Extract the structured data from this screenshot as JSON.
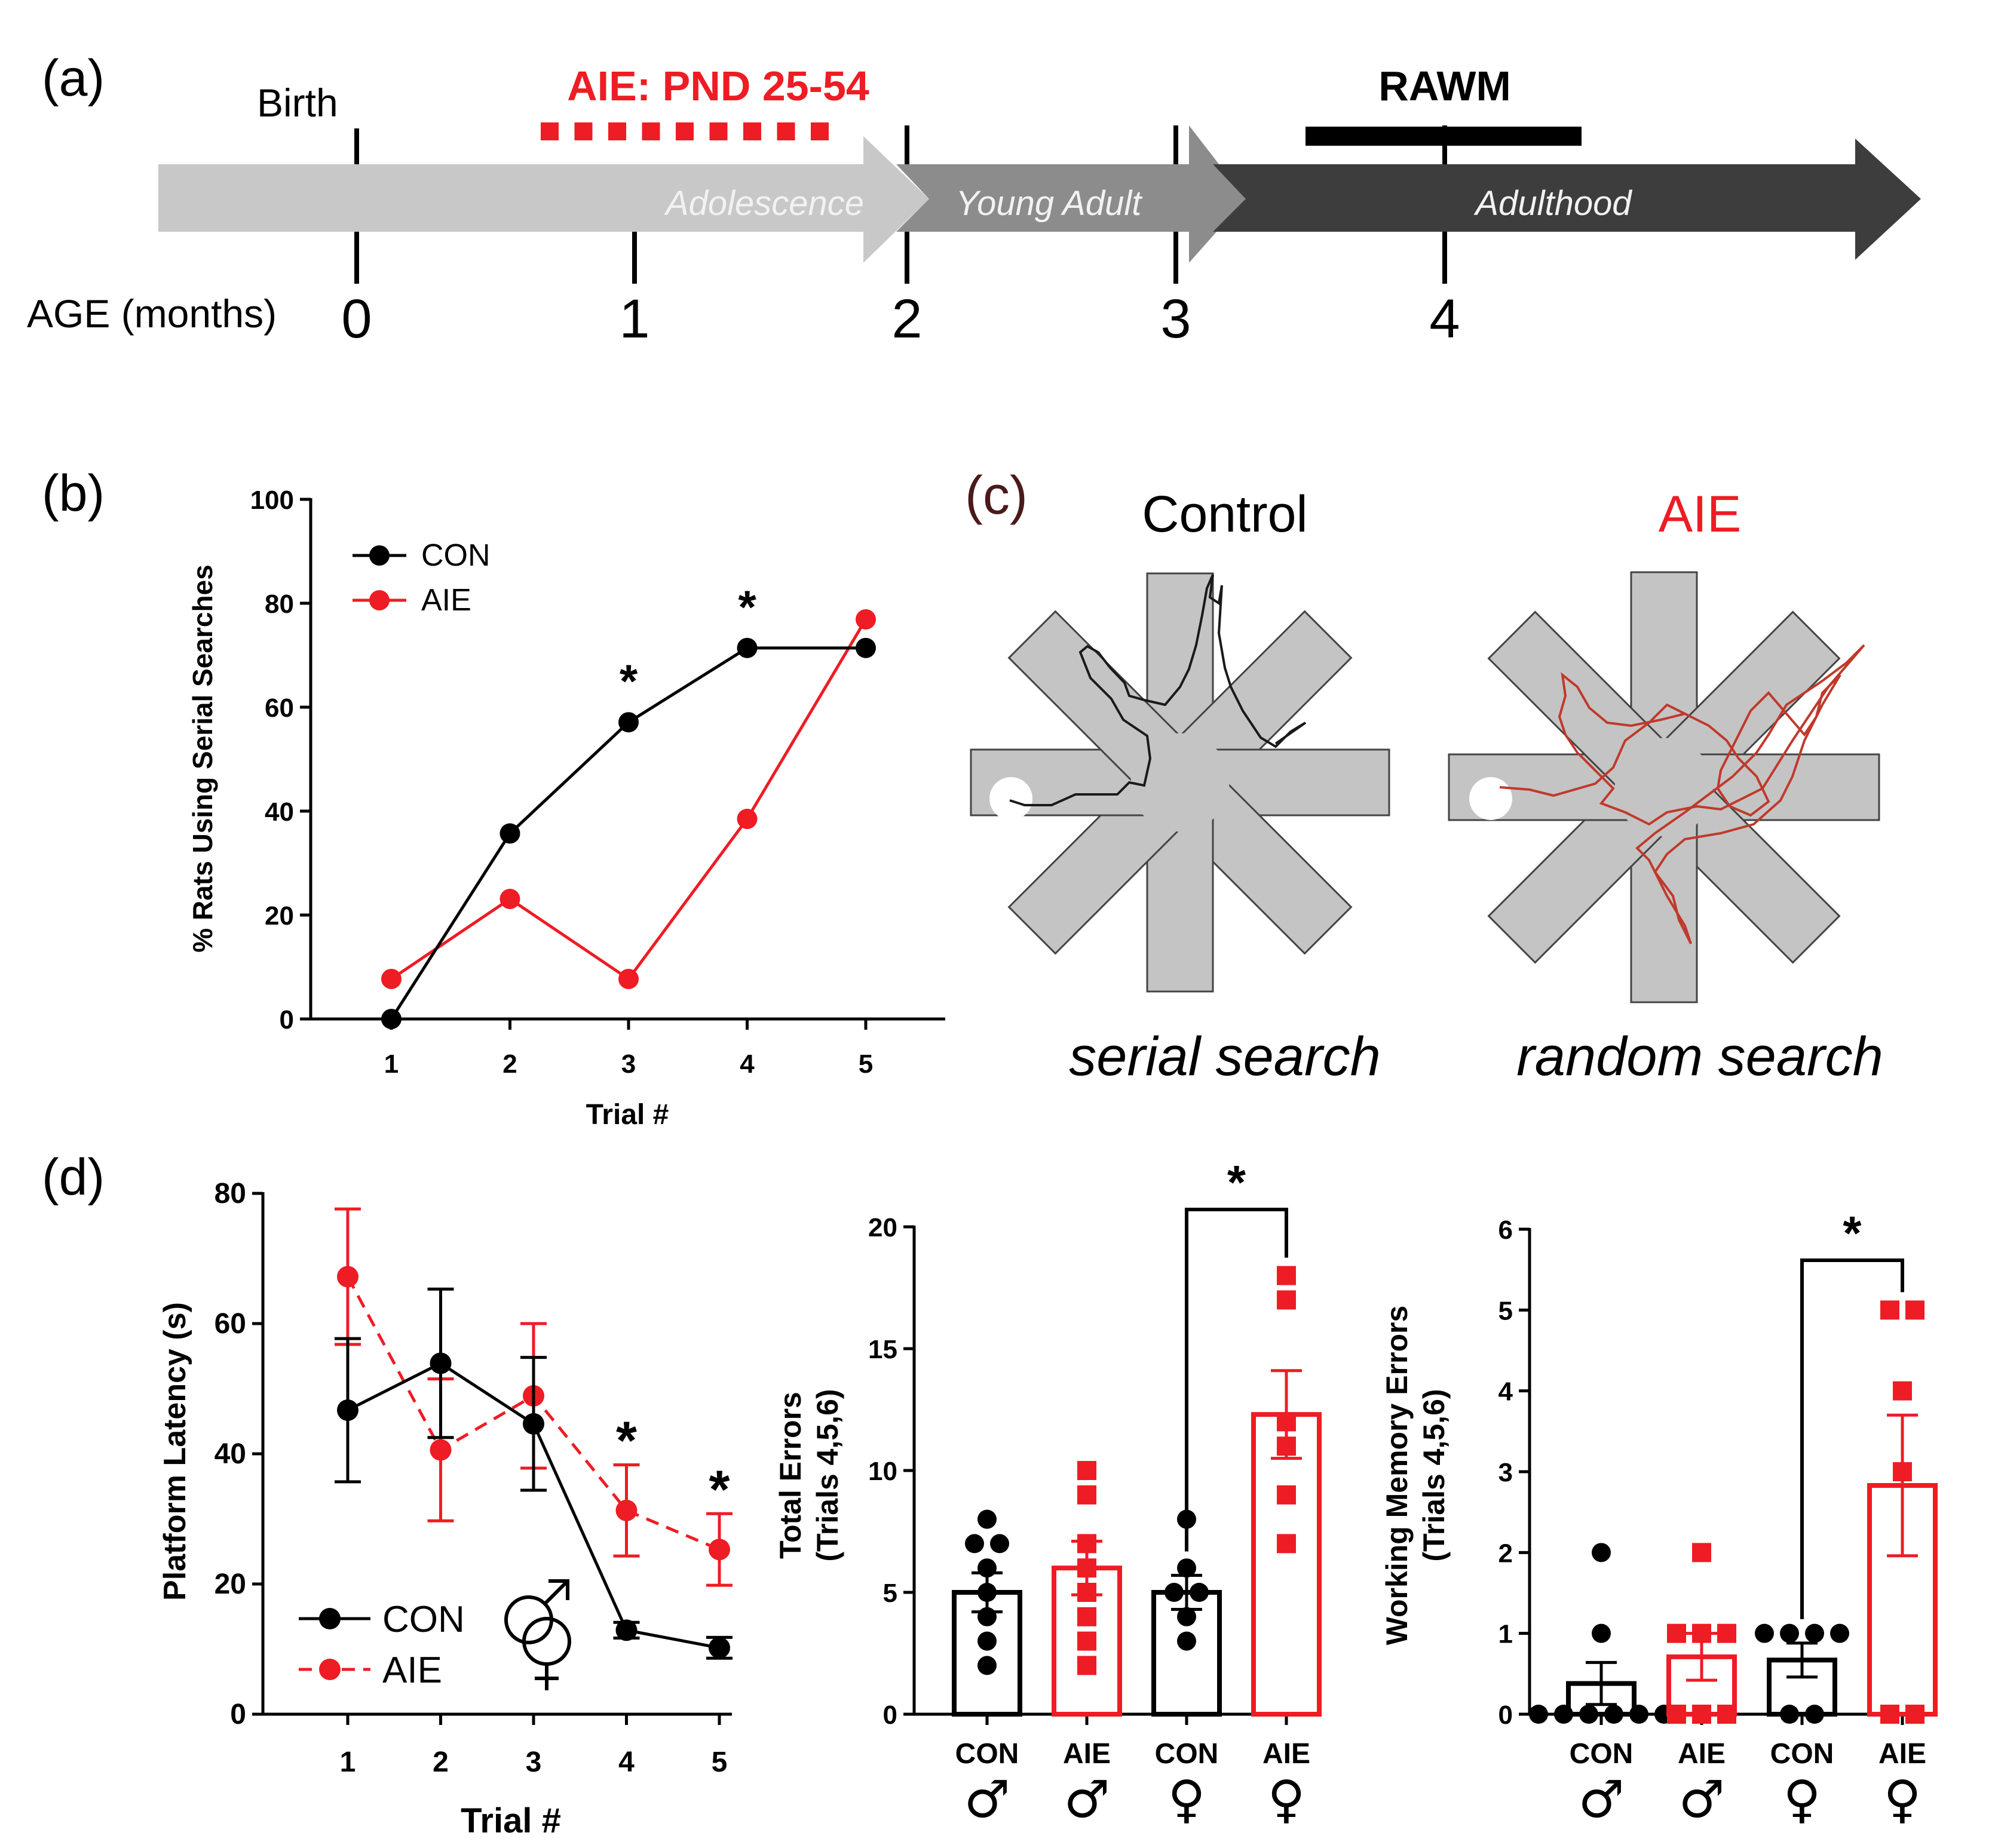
{
  "panel_labels": {
    "a": "(a)",
    "b": "(b)",
    "c": "(c)",
    "d": "(d)"
  },
  "colors": {
    "con": "#000000",
    "aie": "#ee1c24",
    "arrow_light": "#c8c8c8",
    "arrow_mid": "#8c8c8c",
    "arrow_dark": "#3d3d3d",
    "maze_fill": "#c4c4c4",
    "trace_con": "#1a1a1a",
    "trace_aie": "#c0392b"
  },
  "timeline": {
    "birth_label": "Birth",
    "age_label": "AGE (months)",
    "ages": [
      "0",
      "1",
      "2",
      "3",
      "4"
    ],
    "aie_label": "AIE: PND 25-54",
    "rawm_label": "RAWM",
    "stages": [
      "Adolescence",
      "Young Adult",
      "Adulthood"
    ]
  },
  "panel_c": {
    "control_title": "Control",
    "aie_title": "AIE",
    "control_caption": "serial search",
    "aie_caption": "random search"
  },
  "chart_data": [
    {
      "id": "b",
      "type": "line",
      "title": "",
      "xlabel": "Trial #",
      "ylabel": "% Rats Using Serial  Searches",
      "categories": [
        "1",
        "2",
        "3",
        "4",
        "5"
      ],
      "ylim": [
        0,
        100
      ],
      "yticks": [
        "0",
        "20",
        "40",
        "60",
        "80",
        "100"
      ],
      "series": [
        {
          "name": "CON",
          "color": "#000000",
          "values": [
            0,
            35.7,
            57.1,
            71.4,
            71.4
          ]
        },
        {
          "name": "AIE",
          "color": "#ee1c24",
          "values": [
            7.7,
            23.1,
            7.7,
            38.5,
            76.9
          ]
        }
      ],
      "significance": [
        {
          "trial": "3",
          "mark": "*"
        },
        {
          "trial": "4",
          "mark": "*"
        }
      ],
      "legend": "top-left"
    },
    {
      "id": "d1",
      "type": "line",
      "xlabel": "Trial #",
      "ylabel": "Platform Latency (s)",
      "categories": [
        "1",
        "2",
        "3",
        "4",
        "5"
      ],
      "ylim": [
        0,
        80
      ],
      "yticks": [
        "0",
        "20",
        "40",
        "60",
        "80"
      ],
      "series": [
        {
          "name": "CON",
          "color": "#000000",
          "values": [
            46.7,
            53.9,
            44.6,
            12.9,
            10.2
          ],
          "sem": [
            11.0,
            11.4,
            10.2,
            1.2,
            1.6
          ],
          "line": "solid"
        },
        {
          "name": "AIE",
          "color": "#ee1c24",
          "values": [
            67.2,
            40.6,
            48.9,
            31.3,
            25.3
          ],
          "sem": [
            10.4,
            10.9,
            11.1,
            7.0,
            5.5
          ],
          "line": "dashed"
        }
      ],
      "significance": [
        {
          "trial": "4",
          "mark": "*"
        },
        {
          "trial": "5",
          "mark": "*"
        }
      ],
      "legend": "bottom-left",
      "symbols": "♂ ♀"
    },
    {
      "id": "d2",
      "type": "bar",
      "ylabel_lines": [
        "Total Errors",
        "(Trials 4,5,6)"
      ],
      "ylim": [
        0,
        20
      ],
      "yticks": [
        "0",
        "5",
        "10",
        "15",
        "20"
      ],
      "groups": [
        {
          "label": "CON",
          "sex": "♂",
          "color": "#000000",
          "mean": 5.0,
          "sem": 0.8,
          "points": [
            8,
            7,
            7,
            5,
            4,
            6,
            3,
            2
          ]
        },
        {
          "label": "AIE",
          "sex": "♂",
          "color": "#ee1c24",
          "mean": 6.0,
          "sem": 1.1,
          "points": [
            10,
            9,
            7,
            6,
            5,
            4,
            3,
            2
          ]
        },
        {
          "label": "CON",
          "sex": "♀",
          "color": "#000000",
          "mean": 5.0,
          "sem": 0.7,
          "points": [
            8,
            6,
            5,
            5,
            4,
            3
          ]
        },
        {
          "label": "AIE",
          "sex": "♀",
          "color": "#ee1c24",
          "mean": 12.3,
          "sem": 1.8,
          "points": [
            18,
            17,
            12,
            11,
            9,
            7
          ]
        }
      ],
      "significance": [
        {
          "between": [
            2,
            3
          ],
          "mark": "*"
        }
      ]
    },
    {
      "id": "d3",
      "type": "bar",
      "ylabel_lines": [
        "Working  Memory Errors",
        "(Trials 4,5,6)"
      ],
      "ylim": [
        0,
        6
      ],
      "yticks": [
        "0",
        "1",
        "2",
        "3",
        "4",
        "5",
        "6"
      ],
      "groups": [
        {
          "label": "CON",
          "sex": "♂",
          "color": "#000000",
          "mean": 0.38,
          "sem": 0.26,
          "points": [
            2,
            1,
            0,
            0,
            0,
            0,
            0,
            0
          ]
        },
        {
          "label": "AIE",
          "sex": "♂",
          "color": "#ee1c24",
          "mean": 0.71,
          "sem": 0.29,
          "points": [
            2,
            1,
            1,
            1,
            0,
            0,
            0
          ]
        },
        {
          "label": "CON",
          "sex": "♀",
          "color": "#000000",
          "mean": 0.67,
          "sem": 0.21,
          "points": [
            1,
            1,
            1,
            1,
            0,
            0
          ]
        },
        {
          "label": "AIE",
          "sex": "♀",
          "color": "#ee1c24",
          "mean": 2.83,
          "sem": 0.87,
          "points": [
            5,
            5,
            4,
            3,
            0,
            0
          ]
        }
      ],
      "significance": [
        {
          "between": [
            2,
            3
          ],
          "mark": "*"
        }
      ]
    }
  ]
}
